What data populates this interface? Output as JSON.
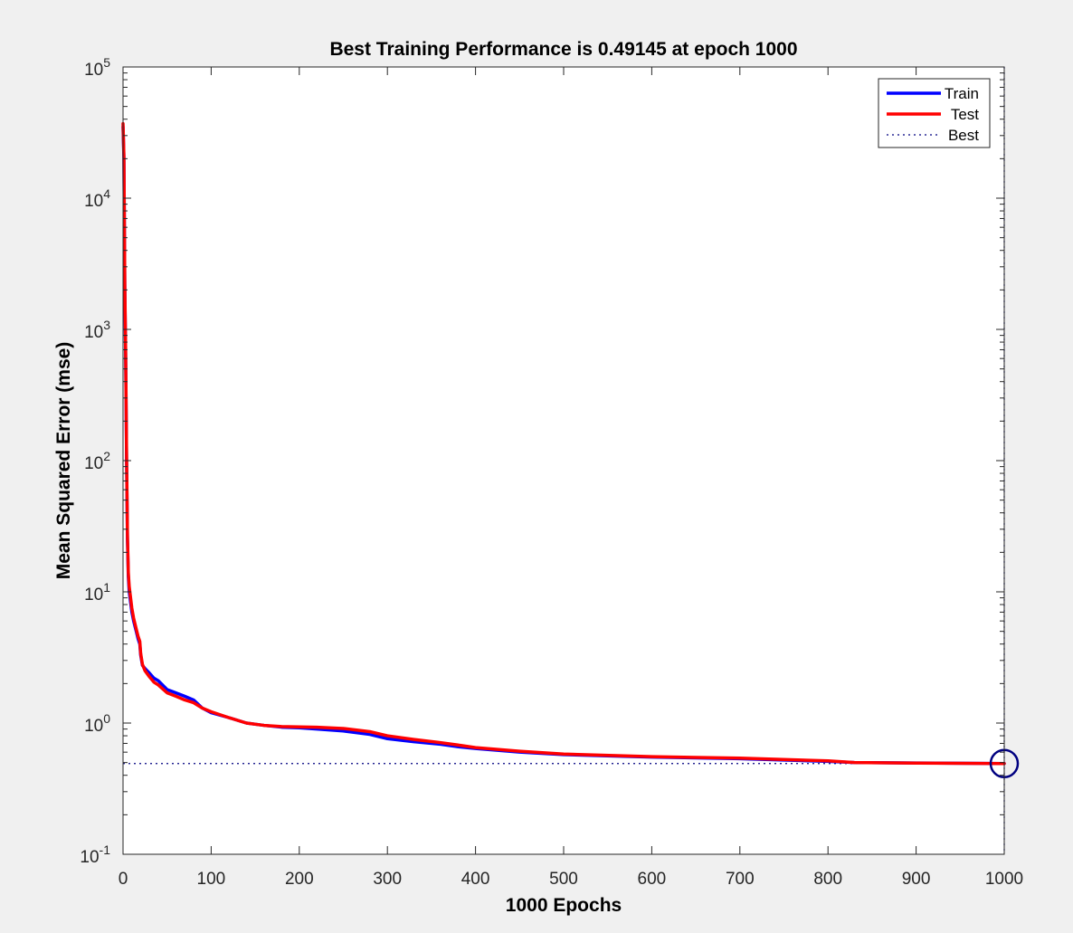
{
  "chart_data": {
    "type": "line",
    "title": "Best Training Performance is 0.49145 at epoch 1000",
    "xlabel": "1000 Epochs",
    "ylabel": "Mean Squared Error  (mse)",
    "xlim": [
      0,
      1000
    ],
    "ylim": [
      0.1,
      100000
    ],
    "yscale": "log",
    "x_ticks": [
      0,
      100,
      200,
      300,
      400,
      500,
      600,
      700,
      800,
      900,
      1000
    ],
    "x_tick_labels": [
      "0",
      "100",
      "200",
      "300",
      "400",
      "500",
      "600",
      "700",
      "800",
      "900",
      "1000"
    ],
    "y_ticks": [
      0.1,
      1,
      10,
      100,
      1000,
      10000,
      100000
    ],
    "y_tick_base": "10",
    "y_tick_exponents": [
      "-1",
      "0",
      "1",
      "2",
      "3",
      "4",
      "5"
    ],
    "grid": false,
    "legend_position": "top-right",
    "best": {
      "epoch": 1000,
      "value": 0.49145,
      "line_label": "Best",
      "color": "#000080"
    },
    "series": [
      {
        "name": "Train",
        "color": "#0000ff",
        "points": [
          [
            0,
            35000
          ],
          [
            1,
            20000
          ],
          [
            2,
            2000
          ],
          [
            3,
            600
          ],
          [
            4,
            100
          ],
          [
            5,
            25
          ],
          [
            6,
            13
          ],
          [
            7,
            10
          ],
          [
            10,
            7
          ],
          [
            12,
            6
          ],
          [
            15,
            5
          ],
          [
            17,
            4.4
          ],
          [
            19,
            4.0
          ],
          [
            20,
            3.3
          ],
          [
            22,
            2.75
          ],
          [
            25,
            2.6
          ],
          [
            30,
            2.4
          ],
          [
            35,
            2.2
          ],
          [
            40,
            2.1
          ],
          [
            50,
            1.8
          ],
          [
            60,
            1.7
          ],
          [
            70,
            1.6
          ],
          [
            80,
            1.5
          ],
          [
            90,
            1.3
          ],
          [
            100,
            1.2
          ],
          [
            120,
            1.1
          ],
          [
            140,
            1.0
          ],
          [
            160,
            0.96
          ],
          [
            180,
            0.93
          ],
          [
            200,
            0.92
          ],
          [
            220,
            0.9
          ],
          [
            250,
            0.87
          ],
          [
            280,
            0.82
          ],
          [
            300,
            0.76
          ],
          [
            330,
            0.72
          ],
          [
            360,
            0.69
          ],
          [
            380,
            0.66
          ],
          [
            400,
            0.64
          ],
          [
            450,
            0.6
          ],
          [
            500,
            0.575
          ],
          [
            600,
            0.55
          ],
          [
            700,
            0.535
          ],
          [
            800,
            0.51
          ],
          [
            830,
            0.5
          ],
          [
            900,
            0.496
          ],
          [
            1000,
            0.49145
          ]
        ]
      },
      {
        "name": "Test",
        "color": "#ff0000",
        "points": [
          [
            0,
            37000
          ],
          [
            1,
            21000
          ],
          [
            2,
            2200
          ],
          [
            3,
            650
          ],
          [
            4,
            110
          ],
          [
            5,
            27
          ],
          [
            6,
            14
          ],
          [
            7,
            11
          ],
          [
            10,
            7.5
          ],
          [
            12,
            6.3
          ],
          [
            15,
            5.2
          ],
          [
            17,
            4.6
          ],
          [
            19,
            4.2
          ],
          [
            20,
            3.4
          ],
          [
            22,
            2.8
          ],
          [
            25,
            2.5
          ],
          [
            30,
            2.25
          ],
          [
            35,
            2.05
          ],
          [
            40,
            1.95
          ],
          [
            50,
            1.7
          ],
          [
            60,
            1.6
          ],
          [
            70,
            1.5
          ],
          [
            80,
            1.43
          ],
          [
            90,
            1.3
          ],
          [
            100,
            1.22
          ],
          [
            120,
            1.1
          ],
          [
            140,
            1.0
          ],
          [
            160,
            0.96
          ],
          [
            180,
            0.94
          ],
          [
            200,
            0.935
          ],
          [
            220,
            0.93
          ],
          [
            250,
            0.91
          ],
          [
            280,
            0.86
          ],
          [
            300,
            0.8
          ],
          [
            330,
            0.75
          ],
          [
            360,
            0.71
          ],
          [
            380,
            0.68
          ],
          [
            400,
            0.65
          ],
          [
            450,
            0.61
          ],
          [
            500,
            0.58
          ],
          [
            600,
            0.555
          ],
          [
            700,
            0.54
          ],
          [
            800,
            0.515
          ],
          [
            830,
            0.5
          ],
          [
            900,
            0.495
          ],
          [
            1000,
            0.49145
          ]
        ]
      }
    ]
  }
}
